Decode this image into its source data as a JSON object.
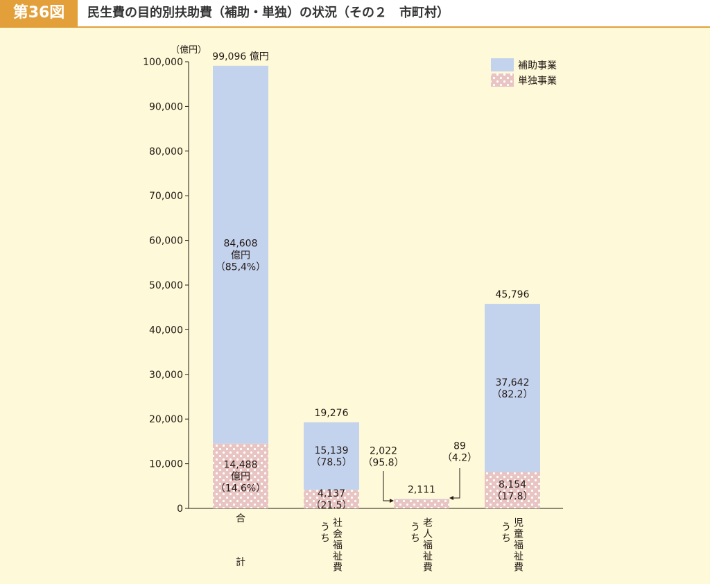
{
  "header": {
    "badge": "第36図",
    "title": "民生費の目的別扶助費（補助・単独）の状況（その２　市町村）"
  },
  "colors": {
    "subsidized": "#c3d3ee",
    "independent": "#e8c4c2",
    "independent_dot": "#ffffff",
    "background": "#fef9d8",
    "accent": "#e3a03a"
  },
  "chart_data": {
    "type": "bar",
    "stacked": true,
    "unit_label": "（億円）",
    "ylim": [
      0,
      100000
    ],
    "yticks": [
      "0",
      "10,000",
      "20,000",
      "30,000",
      "40,000",
      "50,000",
      "60,000",
      "70,000",
      "80,000",
      "90,000",
      "100,000"
    ],
    "grid": false,
    "legend_position": "top-right",
    "categories": [
      "合計",
      "うち社会福祉費",
      "うち老人福祉費",
      "うち児童福祉費"
    ],
    "category_labels": [
      {
        "col1": "合",
        "col2": "計"
      },
      {
        "col1": "うち",
        "col2": "社会福祉費"
      },
      {
        "col1": "うち",
        "col2": "老人福祉費"
      },
      {
        "col1": "うち",
        "col2": "児童福祉費"
      }
    ],
    "series": [
      {
        "name": "単独事業",
        "values": [
          14488,
          4137,
          2022,
          8154
        ]
      },
      {
        "name": "補助事業",
        "values": [
          84608,
          15139,
          89,
          37642
        ]
      }
    ],
    "totals": [
      99096,
      19276,
      2111,
      45796
    ],
    "total_labels": [
      "99,096 億円",
      "19,276",
      "2,111",
      "45,796"
    ],
    "segment_labels": {
      "subsidized": [
        [
          "84,608",
          "億円",
          "（85,4%）"
        ],
        [
          "15,139",
          "（78.5）"
        ],
        [
          "89",
          "（4.2）"
        ],
        [
          "37,642",
          "（82.2）"
        ]
      ],
      "independent": [
        [
          "14,488",
          "億円",
          "（14.6%）"
        ],
        [
          "4,137",
          "（21.5）"
        ],
        [
          "2,022",
          "（95.8）"
        ],
        [
          "8,154",
          "（17.8）"
        ]
      ]
    }
  }
}
